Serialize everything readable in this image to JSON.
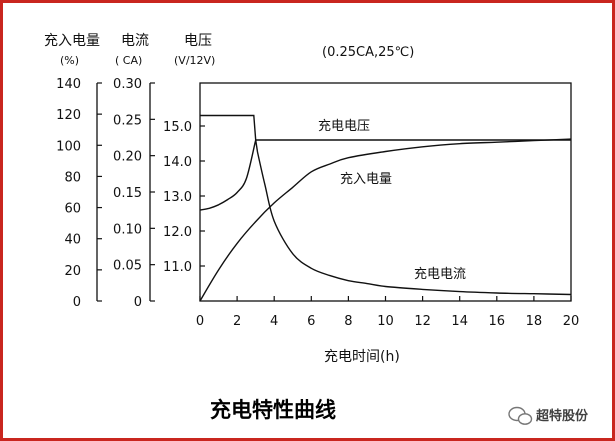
{
  "chart_data": {
    "type": "line",
    "title": "充电特性曲线",
    "condition": "(0.25CA,25℃)",
    "xlabel": "充电时间(h)",
    "xlim": [
      0,
      20
    ],
    "x_ticks": [
      0,
      2,
      4,
      6,
      8,
      10,
      12,
      14,
      16,
      18,
      20
    ],
    "y_axes": [
      {
        "label": "充入电量",
        "unit": "(%)",
        "range": [
          0,
          140
        ],
        "ticks": [
          0,
          20,
          40,
          60,
          80,
          100,
          120,
          140
        ]
      },
      {
        "label": "电流",
        "unit": "( CA)",
        "range": [
          0,
          0.3
        ],
        "ticks": [
          "0",
          "0.05",
          "0.10",
          "0.15",
          "0.20",
          "0.25",
          "0.30"
        ]
      },
      {
        "label": "电压",
        "unit": "(V/12V)",
        "range": [
          10,
          15.5
        ],
        "ticks": [
          "11.0",
          "12.0",
          "13.0",
          "14.0",
          "15.0"
        ]
      }
    ],
    "series": [
      {
        "name": "充电电压",
        "axis": "V/12V",
        "x": [
          0,
          2.9,
          3.0,
          4,
          6,
          8,
          10,
          12,
          14,
          16,
          18,
          20
        ],
        "y": [
          15.3,
          15.3,
          14.6,
          14.6,
          14.6,
          14.6,
          14.6,
          14.6,
          14.6,
          14.6,
          14.6,
          14.6
        ]
      },
      {
        "name": "充电电压",
        "axis": "V/12V",
        "x": [
          0,
          0.5,
          1,
          1.5,
          2,
          2.5,
          3.0
        ],
        "y": [
          12.6,
          12.65,
          12.75,
          12.9,
          13.1,
          13.5,
          14.6
        ]
      },
      {
        "name": "充入电量",
        "axis": "%",
        "x": [
          0,
          1,
          2,
          3,
          4,
          5,
          6,
          7,
          8,
          10,
          12,
          14,
          16,
          18,
          20
        ],
        "y": [
          0,
          20,
          37,
          51,
          63,
          73,
          83,
          88,
          92,
          96,
          99,
          101,
          102,
          103,
          104
        ]
      },
      {
        "name": "充电电流",
        "axis": "CA",
        "x": [
          3.1,
          3.5,
          4,
          5,
          6,
          7,
          8,
          9,
          10,
          12,
          14,
          16,
          18,
          20
        ],
        "y": [
          0.205,
          0.16,
          0.11,
          0.065,
          0.045,
          0.035,
          0.028,
          0.024,
          0.02,
          0.016,
          0.013,
          0.011,
          0.01,
          0.009
        ]
      }
    ],
    "annotations": [
      "充电电压",
      "充入电量",
      "充电电流"
    ],
    "grid": false
  },
  "watermark": "超特股份"
}
